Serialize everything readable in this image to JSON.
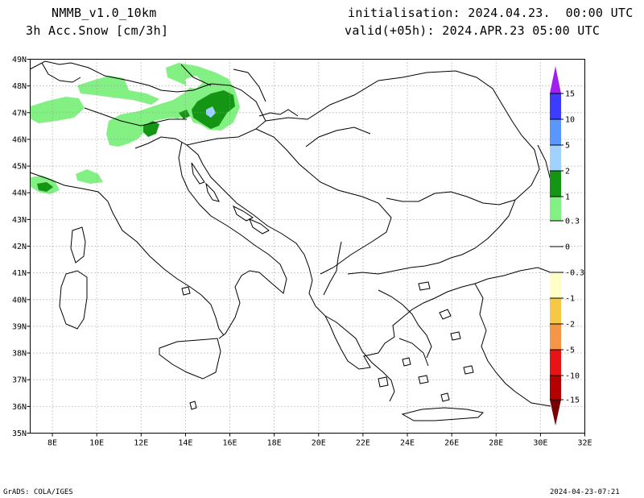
{
  "header": {
    "model": "NMMB_v1.0_10km",
    "variable": "3h Acc.Snow [cm/3h]",
    "init": "initialisation: 2024.04.23.  00:00 UTC",
    "valid": "valid(+05h): 2024.APR.23 05:00 UTC"
  },
  "map": {
    "lon_range": [
      7,
      32
    ],
    "lat_range": [
      35,
      49
    ],
    "lon_ticks": [
      "8E",
      "10E",
      "12E",
      "14E",
      "16E",
      "18E",
      "20E",
      "22E",
      "24E",
      "26E",
      "28E",
      "30E",
      "32E"
    ],
    "lat_ticks": [
      "35N",
      "36N",
      "37N",
      "38N",
      "39N",
      "40N",
      "41N",
      "42N",
      "43N",
      "44N",
      "45N",
      "46N",
      "47N",
      "48N",
      "49N"
    ],
    "grid": true
  },
  "legend": {
    "labels": [
      "15",
      "10",
      "5",
      "2",
      "1",
      "0.3",
      "0",
      "-0.3",
      "-1",
      "-2",
      "-5",
      "-10",
      "-15"
    ],
    "colors": {
      "top_arrow": "#a020f0",
      "c15": "#3c3cff",
      "c10": "#5a96ff",
      "c5": "#a0d2ff",
      "c2": "#149614",
      "c1": "#82f082",
      "zero": "#ffffff",
      "n03": "#ffffc8",
      "n1": "#f5c846",
      "n2": "#f59646",
      "n5": "#e61414",
      "n10": "#b40000",
      "bottom_arrow": "#780000"
    }
  },
  "footer": {
    "left": "GrADS: COLA/IGES",
    "right": "2024-04-23-07:21"
  }
}
